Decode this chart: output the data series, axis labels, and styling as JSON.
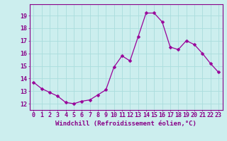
{
  "x": [
    0,
    1,
    2,
    3,
    4,
    5,
    6,
    7,
    8,
    9,
    10,
    11,
    12,
    13,
    14,
    15,
    16,
    17,
    18,
    19,
    20,
    21,
    22,
    23
  ],
  "y": [
    13.7,
    13.2,
    12.9,
    12.6,
    12.1,
    12.0,
    12.2,
    12.3,
    12.7,
    13.1,
    14.9,
    15.8,
    15.4,
    17.3,
    19.2,
    19.2,
    18.5,
    16.5,
    16.3,
    17.0,
    16.7,
    16.0,
    15.2,
    14.5
  ],
  "line_color": "#990099",
  "marker": "D",
  "marker_size": 2.5,
  "bg_color": "#cceeee",
  "grid_color": "#aadddd",
  "xlabel": "Windchill (Refroidissement éolien,°C)",
  "ylabel": "",
  "ylim": [
    11.5,
    19.9
  ],
  "xlim": [
    -0.5,
    23.5
  ],
  "yticks": [
    12,
    13,
    14,
    15,
    16,
    17,
    18,
    19
  ],
  "xticks": [
    0,
    1,
    2,
    3,
    4,
    5,
    6,
    7,
    8,
    9,
    10,
    11,
    12,
    13,
    14,
    15,
    16,
    17,
    18,
    19,
    20,
    21,
    22,
    23
  ],
  "tick_color": "#880088",
  "label_fontsize": 6.5,
  "tick_fontsize": 6.0,
  "spine_color": "#880088"
}
